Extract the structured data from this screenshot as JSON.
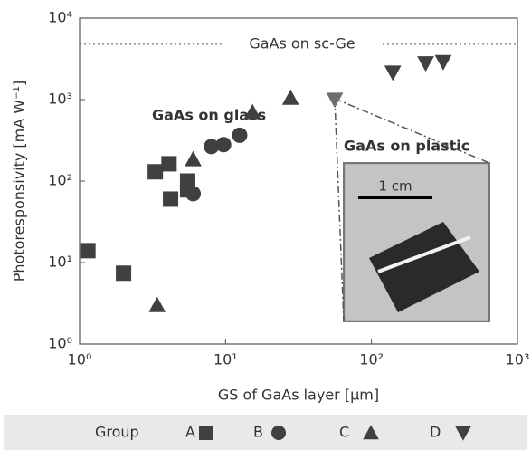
{
  "chart_data": {
    "type": "scatter",
    "xscale": "log",
    "yscale": "log",
    "xlabel": "GS of GaAs layer [μm]",
    "ylabel": "Photoresponsivity [mA W⁻¹]",
    "xlim": [
      1,
      1000
    ],
    "ylim": [
      1,
      10000
    ],
    "xticks": [
      {
        "value": 1,
        "label": "10⁰"
      },
      {
        "value": 10,
        "label": "10¹"
      },
      {
        "value": 100,
        "label": "10²"
      },
      {
        "value": 1000,
        "label": "10³"
      }
    ],
    "yticks": [
      {
        "value": 1,
        "label": "10⁰"
      },
      {
        "value": 10,
        "label": "10¹"
      },
      {
        "value": 100,
        "label": "10²"
      },
      {
        "value": 1000,
        "label": "10³"
      },
      {
        "value": 10000,
        "label": "10⁴"
      }
    ],
    "legend_title": "Group",
    "series": [
      {
        "name": "A",
        "marker": "square",
        "color": "#404040",
        "x": [
          1.14,
          2.0,
          3.3,
          4.1,
          4.2,
          5.5,
          5.5
        ],
        "values": [
          14,
          7.4,
          130,
          163,
          60,
          78,
          100
        ]
      },
      {
        "name": "B",
        "marker": "circle",
        "color": "#404040",
        "x": [
          8.0,
          9.7,
          12.5,
          6.0
        ],
        "values": [
          265,
          280,
          365,
          70
        ]
      },
      {
        "name": "C",
        "marker": "triangle",
        "color": "#404040",
        "x": [
          3.4,
          6.0,
          15.3,
          27.9
        ],
        "values": [
          3.0,
          185,
          700,
          1050
        ]
      },
      {
        "name": "D",
        "marker": "triangle-down",
        "color": "#404040",
        "point_colors": [
          "#6e6e6e",
          "#404040",
          "#404040",
          "#404040"
        ],
        "x": [
          56,
          140,
          235,
          310
        ],
        "values": [
          1000,
          2150,
          2800,
          2900
        ]
      }
    ],
    "reference_line": {
      "value": 4780,
      "label": "GaAs on sc-Ge"
    },
    "annotations": [
      "GaAs on glass",
      "GaAs on plastic"
    ],
    "inset_label": "1 cm"
  }
}
